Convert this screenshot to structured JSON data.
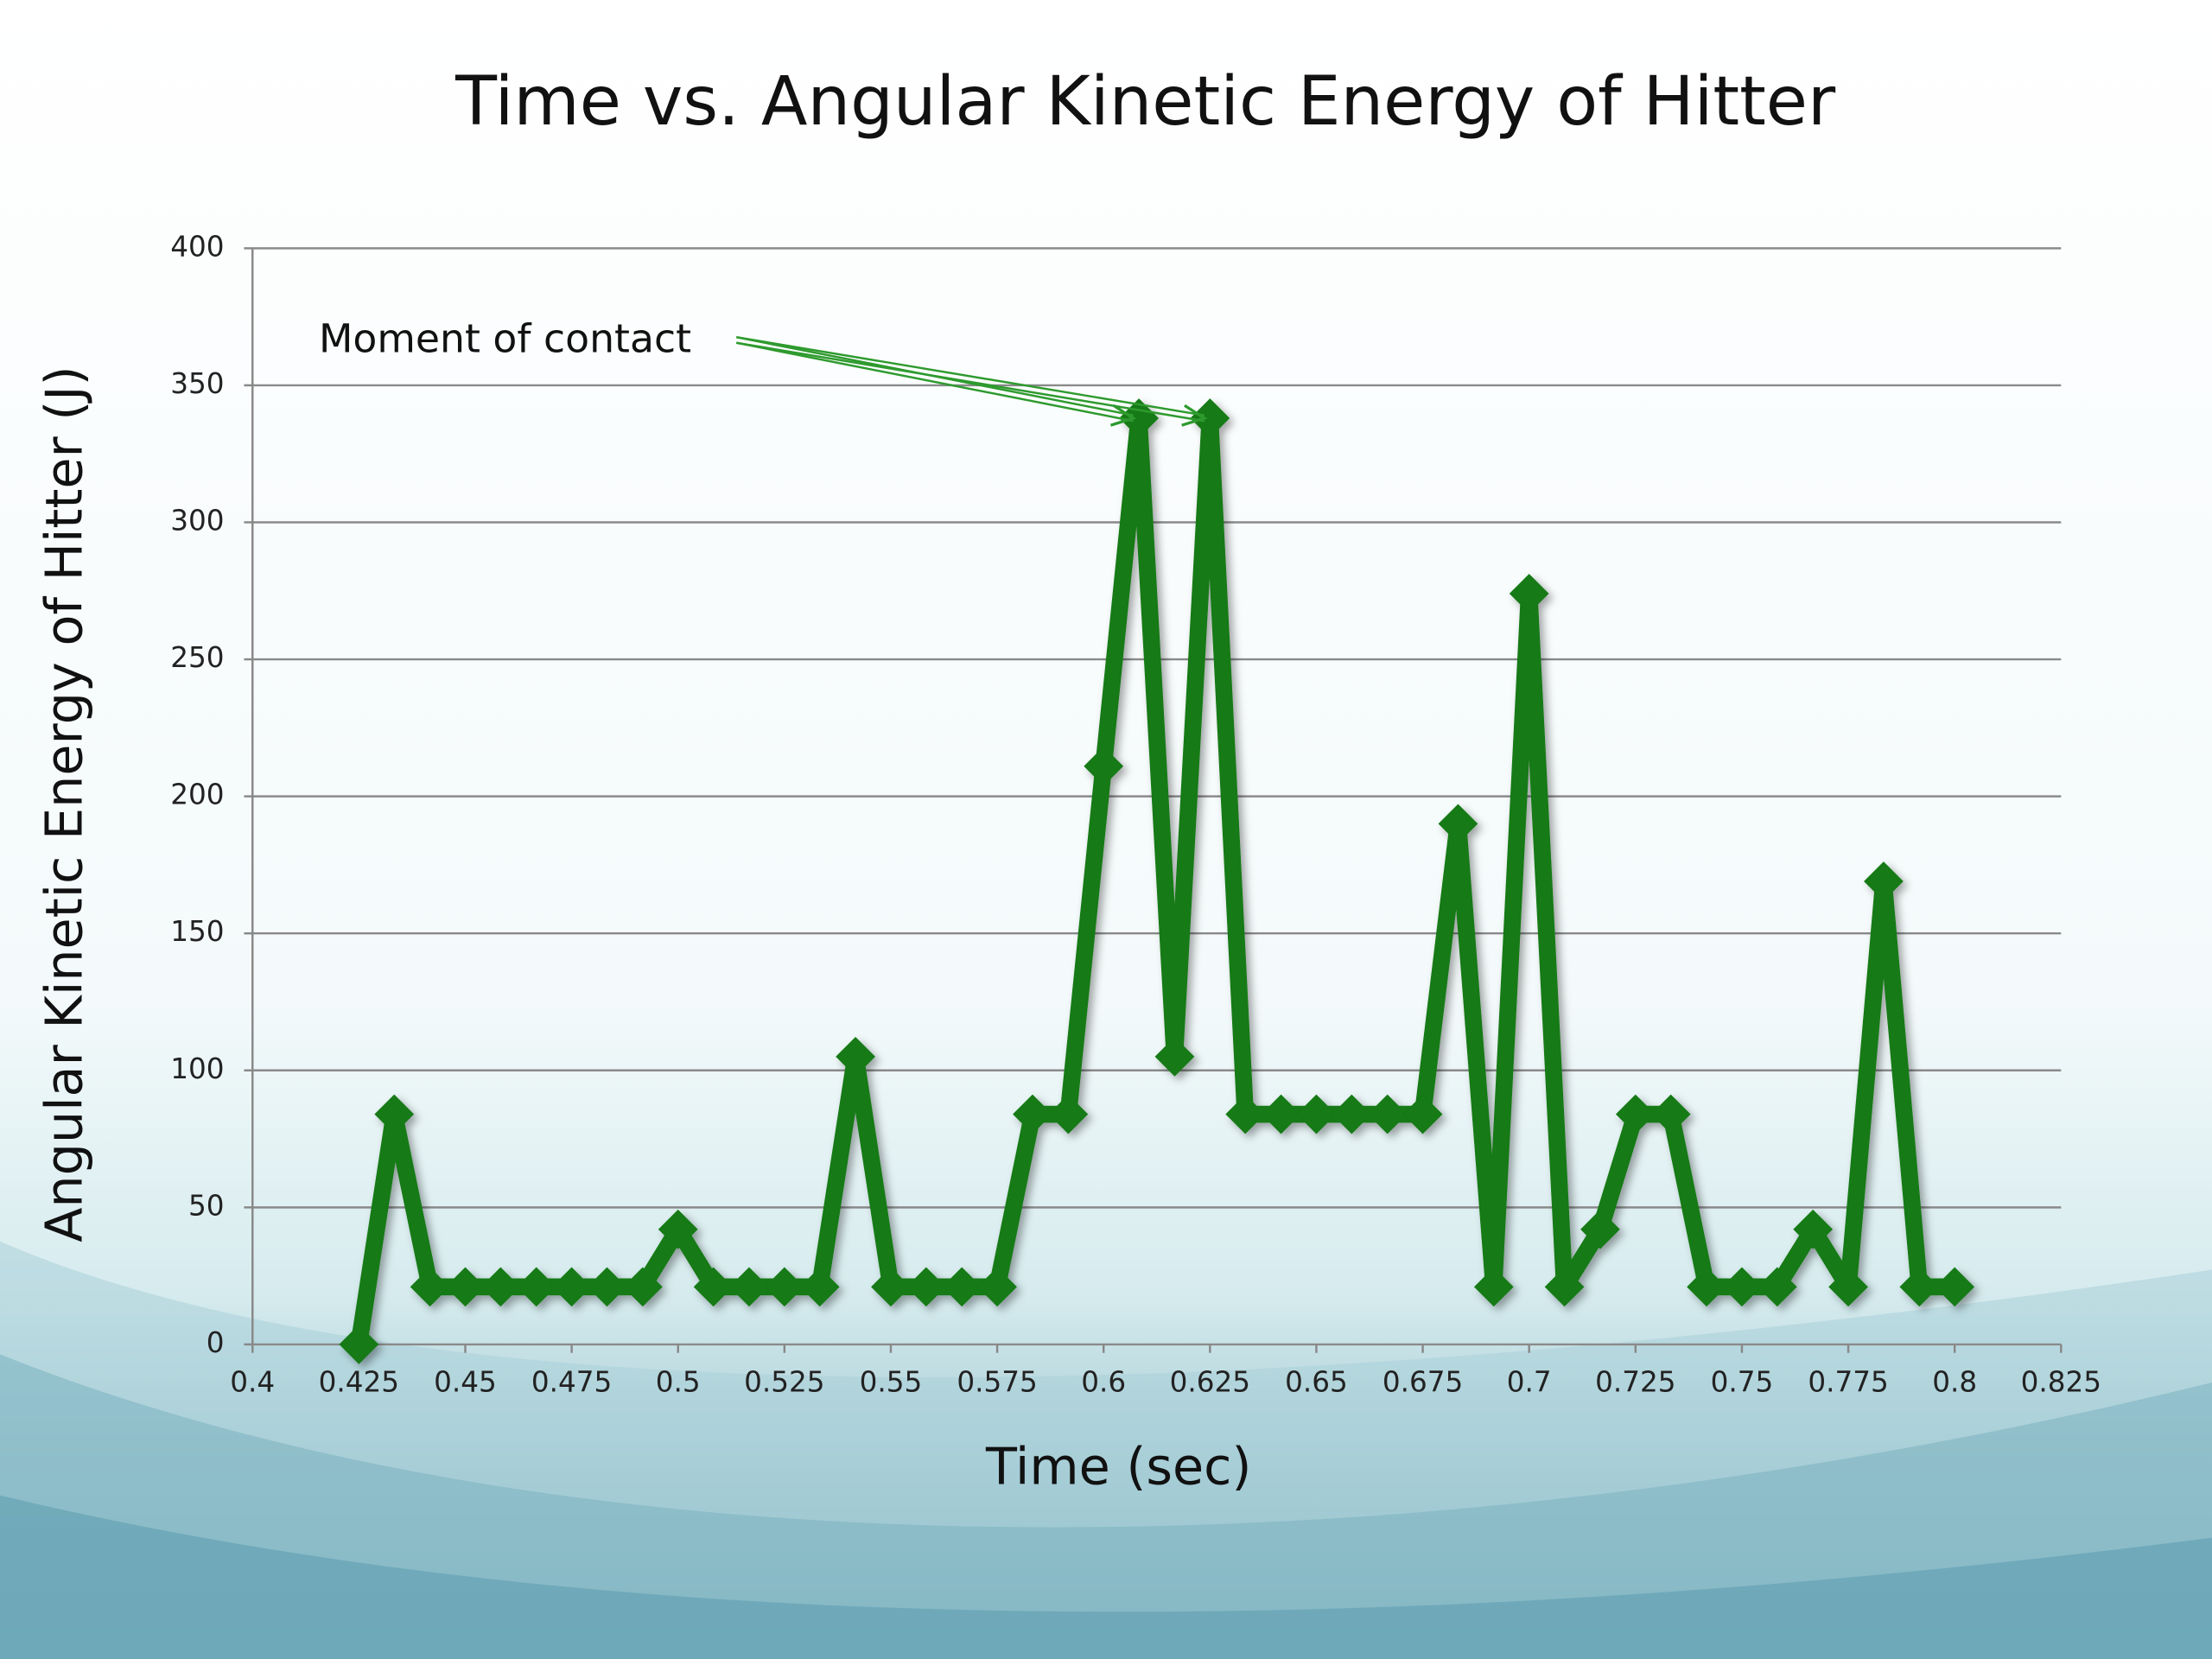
{
  "chart_data": {
    "type": "line",
    "title": "Time vs. Angular Kinetic Energy of  Hitter",
    "x_label": "Time (sec)",
    "y_label": "Angular Kinetic Energy of  Hitter (J)",
    "annotation": "Moment of contact",
    "x": [
      0.425,
      0.4333,
      0.4417,
      0.45,
      0.4583,
      0.4667,
      0.475,
      0.4833,
      0.4917,
      0.5,
      0.5083,
      0.5167,
      0.525,
      0.5333,
      0.5417,
      0.55,
      0.5583,
      0.5667,
      0.575,
      0.5833,
      0.5917,
      0.6,
      0.6083,
      0.6167,
      0.625,
      0.6333,
      0.6417,
      0.65,
      0.6583,
      0.6667,
      0.675,
      0.6833,
      0.6917,
      0.7,
      0.7083,
      0.7167,
      0.725,
      0.7333,
      0.7417,
      0.75,
      0.7583,
      0.7667,
      0.775,
      0.7833,
      0.7917,
      0.8
    ],
    "values": [
      0,
      84,
      21,
      21,
      21,
      21,
      21,
      21,
      21,
      42,
      21,
      21,
      21,
      21,
      105,
      21,
      21,
      21,
      21,
      84,
      84,
      211,
      338,
      105,
      338,
      84,
      84,
      84,
      84,
      84,
      84,
      190,
      21,
      274,
      21,
      42,
      84,
      84,
      21,
      21,
      21,
      42,
      21,
      169,
      21,
      21
    ],
    "color": "#127a12",
    "xlim": [
      0.4,
      0.825
    ],
    "xticks": [
      0.4,
      0.425,
      0.45,
      0.475,
      0.5,
      0.525,
      0.55,
      0.575,
      0.6,
      0.625,
      0.65,
      0.675,
      0.7,
      0.725,
      0.75,
      0.775,
      0.8,
      0.825
    ],
    "ylim": [
      0,
      400
    ],
    "yticks": [
      0,
      50,
      100,
      150,
      200,
      250,
      300,
      350,
      400
    ],
    "grid": true
  }
}
